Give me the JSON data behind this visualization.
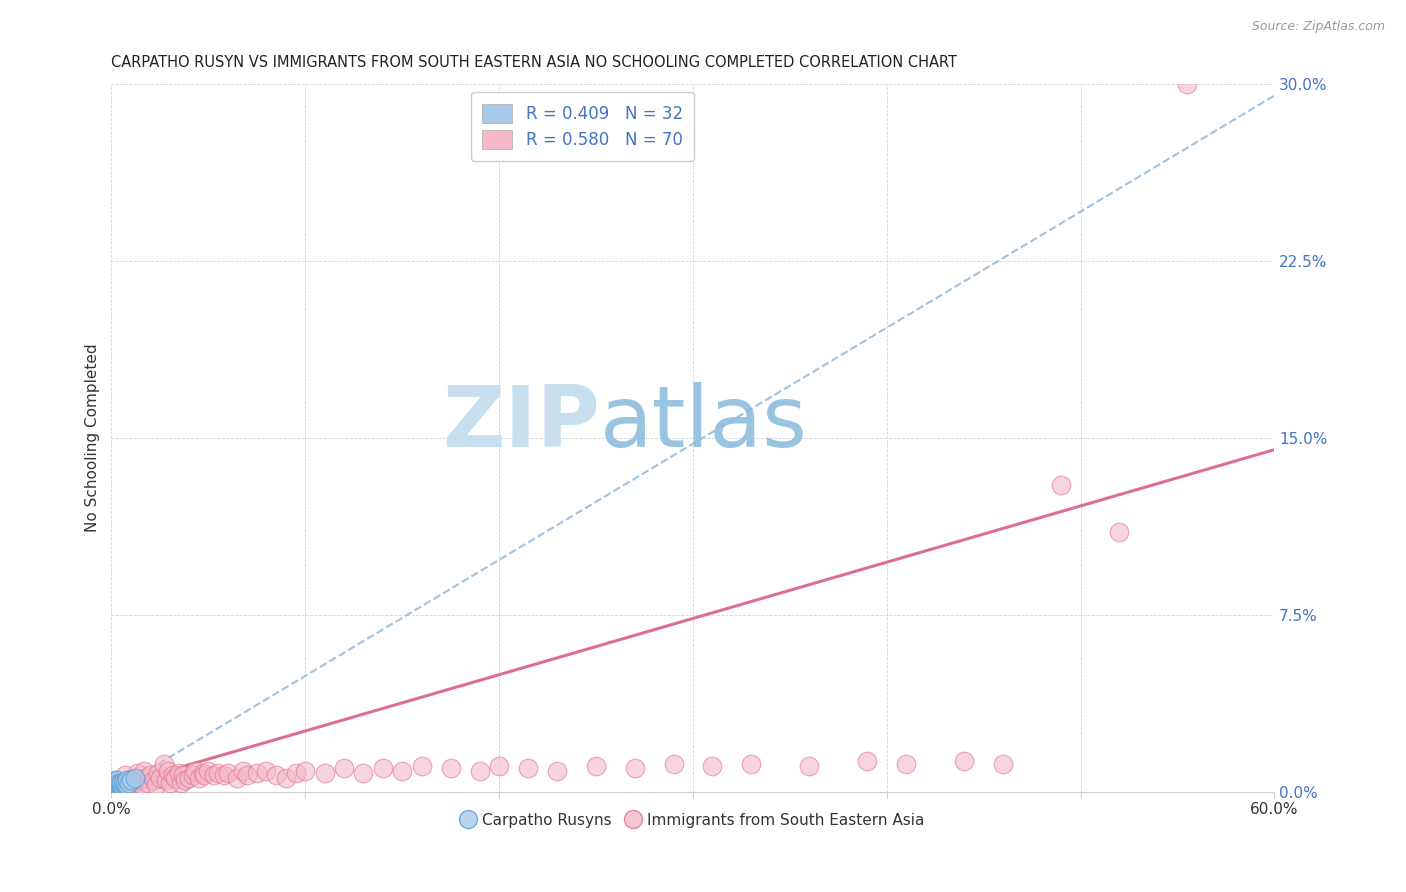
{
  "title": "CARPATHO RUSYN VS IMMIGRANTS FROM SOUTH EASTERN ASIA NO SCHOOLING COMPLETED CORRELATION CHART",
  "source": "Source: ZipAtlas.com",
  "ylabel": "No Schooling Completed",
  "xlim": [
    0.0,
    0.6
  ],
  "ylim": [
    0.0,
    0.3
  ],
  "xtick_positions": [
    0.0,
    0.1,
    0.2,
    0.3,
    0.4,
    0.5,
    0.6
  ],
  "ytick_positions": [
    0.0,
    0.075,
    0.15,
    0.225,
    0.3
  ],
  "ytick_labels": [
    "0.0%",
    "7.5%",
    "15.0%",
    "22.5%",
    "30.0%"
  ],
  "xtick_labels": [
    "0.0%",
    "",
    "",
    "",
    "",
    "",
    "60.0%"
  ],
  "legend_label1": "Carpatho Rusyns",
  "legend_label2": "Immigrants from South Eastern Asia",
  "R1": 0.409,
  "N1": 32,
  "R2": 0.58,
  "N2": 70,
  "color_blue": "#a8c8e8",
  "color_blue_dark": "#5b9bd5",
  "color_pink": "#f4b8c8",
  "color_pink_dark": "#e07090",
  "trendline1_color": "#90b8d8",
  "trendline2_color": "#d96080",
  "watermark_zip": "ZIP",
  "watermark_atlas": "atlas",
  "watermark_color_zip": "#c8dff0",
  "watermark_color_atlas": "#98c4e0",
  "tick_label_color": "#4472c4",
  "grid_color": "#d0d0d0",
  "blue_x": [
    0.001,
    0.001,
    0.001,
    0.001,
    0.001,
    0.002,
    0.002,
    0.002,
    0.002,
    0.002,
    0.002,
    0.003,
    0.003,
    0.003,
    0.003,
    0.003,
    0.004,
    0.004,
    0.004,
    0.004,
    0.005,
    0.005,
    0.005,
    0.006,
    0.006,
    0.007,
    0.007,
    0.008,
    0.008,
    0.009,
    0.01,
    0.012
  ],
  "blue_y": [
    0.0,
    0.001,
    0.002,
    0.003,
    0.004,
    0.0,
    0.001,
    0.002,
    0.003,
    0.004,
    0.005,
    0.001,
    0.002,
    0.003,
    0.004,
    0.005,
    0.001,
    0.002,
    0.003,
    0.004,
    0.002,
    0.003,
    0.004,
    0.002,
    0.004,
    0.003,
    0.004,
    0.003,
    0.005,
    0.004,
    0.005,
    0.006
  ],
  "pink_x": [
    0.005,
    0.007,
    0.008,
    0.01,
    0.012,
    0.013,
    0.015,
    0.016,
    0.017,
    0.018,
    0.019,
    0.02,
    0.022,
    0.023,
    0.024,
    0.025,
    0.027,
    0.028,
    0.029,
    0.03,
    0.032,
    0.033,
    0.035,
    0.036,
    0.037,
    0.038,
    0.04,
    0.042,
    0.043,
    0.045,
    0.047,
    0.048,
    0.05,
    0.053,
    0.055,
    0.058,
    0.06,
    0.065,
    0.068,
    0.07,
    0.075,
    0.08,
    0.085,
    0.09,
    0.095,
    0.1,
    0.11,
    0.12,
    0.13,
    0.14,
    0.15,
    0.16,
    0.175,
    0.19,
    0.2,
    0.215,
    0.23,
    0.25,
    0.27,
    0.29,
    0.31,
    0.33,
    0.36,
    0.39,
    0.41,
    0.44,
    0.46,
    0.49,
    0.52,
    0.555
  ],
  "pink_y": [
    0.003,
    0.007,
    0.005,
    0.003,
    0.004,
    0.008,
    0.005,
    0.003,
    0.009,
    0.006,
    0.004,
    0.007,
    0.005,
    0.003,
    0.008,
    0.006,
    0.012,
    0.005,
    0.009,
    0.004,
    0.007,
    0.006,
    0.008,
    0.004,
    0.007,
    0.005,
    0.006,
    0.007,
    0.009,
    0.006,
    0.008,
    0.007,
    0.009,
    0.007,
    0.008,
    0.007,
    0.008,
    0.006,
    0.009,
    0.007,
    0.008,
    0.009,
    0.007,
    0.006,
    0.008,
    0.009,
    0.008,
    0.01,
    0.008,
    0.01,
    0.009,
    0.011,
    0.01,
    0.009,
    0.011,
    0.01,
    0.009,
    0.011,
    0.01,
    0.012,
    0.011,
    0.012,
    0.011,
    0.013,
    0.012,
    0.013,
    0.012,
    0.13,
    0.11,
    0.3
  ],
  "trendline1_x0": 0.0,
  "trendline1_y0": 0.0,
  "trendline1_x1": 0.6,
  "trendline1_y1": 0.295,
  "trendline2_x0": 0.0,
  "trendline2_y0": 0.002,
  "trendline2_x1": 0.6,
  "trendline2_y1": 0.145
}
